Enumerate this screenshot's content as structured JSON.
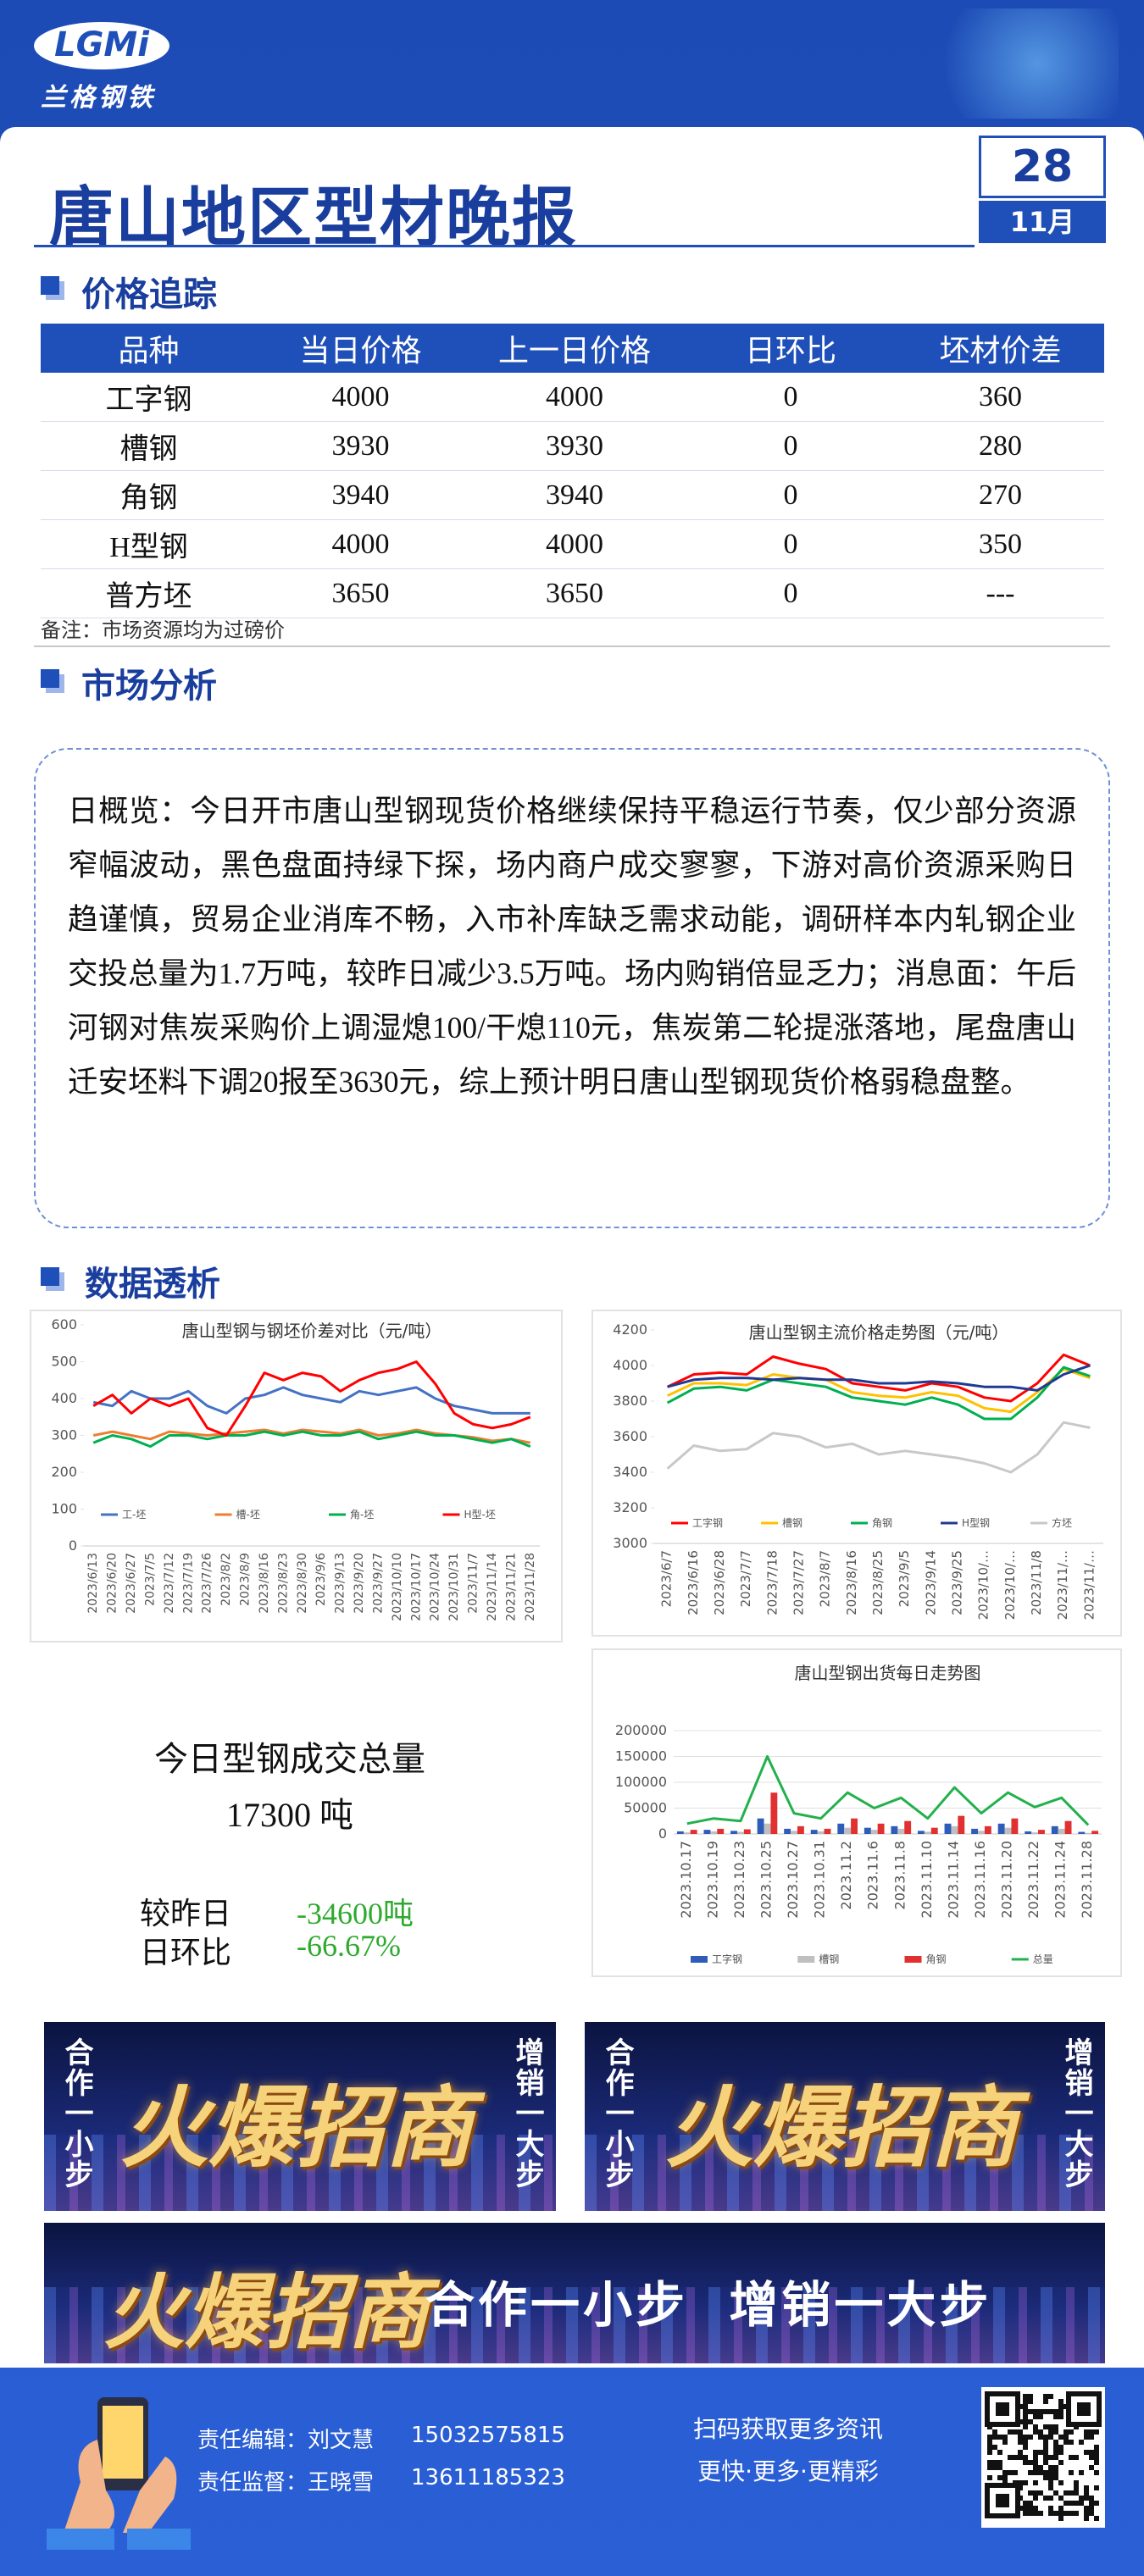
{
  "header": {
    "logo": "LGMi",
    "brand": "兰格钢铁",
    "title": "唐山地区型材晚报",
    "day": "28",
    "month": "11月"
  },
  "sections": {
    "price": "价格追踪",
    "market": "市场分析",
    "data": "数据透析"
  },
  "table": {
    "columns": [
      "品种",
      "当日价格",
      "上一日价格",
      "日环比",
      "坯材价差"
    ],
    "rows": [
      [
        "工字钢",
        4000,
        4000,
        0,
        360
      ],
      [
        "槽钢",
        3930,
        3930,
        0,
        280
      ],
      [
        "角钢",
        3940,
        3940,
        0,
        270
      ],
      [
        "H型钢",
        4000,
        4000,
        0,
        350
      ],
      [
        "普方坯",
        3650,
        3650,
        0,
        "---"
      ]
    ],
    "note": "备注：市场资源均为过磅价"
  },
  "analysis": "日概览：今日开市唐山型钢现货价格继续保持平稳运行节奏，仅少部分资源窄幅波动，黑色盘面持绿下探，场内商户成交寥寥，下游对高价资源采购日趋谨慎，贸易企业消库不畅，入市补库缺乏需求动能，调研样本内轧钢企业交投总量为1.7万吨，较昨日减少3.5万吨。场内购销倍显乏力；消息面：午后河钢对焦炭采购价上调湿熄100/干熄110元，焦炭第二轮提涨落地，尾盘唐山迁安坯料下调20报至3630元，综上预计明日唐山型钢现货价格弱稳盘整。",
  "summary": {
    "title": "今日型钢成交总量",
    "total": "17300 吨",
    "rows": [
      [
        "较昨日",
        "-34600吨"
      ],
      [
        "日环比",
        "-66.67%"
      ]
    ]
  },
  "banner": {
    "side_left": "合作一小步",
    "side_right": "增销一大步",
    "headline": "火爆招商",
    "slogan": "合作一小步  增销一大步"
  },
  "footer": {
    "editor": "责任编辑：刘文慧",
    "editor_phone": "15032575815",
    "supervisor": "责任监督：王晓雪",
    "supervisor_phone": "13611185323",
    "qr_title": "扫码获取更多资讯",
    "qr_slogan": "更快·更多·更精彩"
  },
  "chart_data": [
    {
      "type": "line",
      "title": "唐山型钢与钢坯价差对比（元/吨）",
      "categories": [
        "2023/6/13",
        "2023/6/20",
        "2023/6/27",
        "2023/7/5",
        "2023/7/12",
        "2023/7/19",
        "2023/7/26",
        "2023/8/2",
        "2023/8/9",
        "2023/8/16",
        "2023/8/23",
        "2023/8/30",
        "2023/9/6",
        "2023/9/13",
        "2023/9/20",
        "2023/9/27",
        "2023/10/10",
        "2023/10/17",
        "2023/10/24",
        "2023/10/31",
        "2023/11/7",
        "2023/11/14",
        "2023/11/21",
        "2023/11/28"
      ],
      "ylim": [
        0,
        600
      ],
      "yticks": [
        0,
        100,
        200,
        300,
        400,
        500,
        600
      ],
      "grid": false,
      "series": [
        {
          "name": "工-坯",
          "color": "#4472c4",
          "values": [
            390,
            380,
            420,
            400,
            400,
            420,
            380,
            360,
            400,
            410,
            430,
            410,
            400,
            390,
            420,
            410,
            420,
            430,
            400,
            380,
            370,
            360,
            360,
            360
          ]
        },
        {
          "name": "槽-坯",
          "color": "#ed7d31",
          "values": [
            300,
            310,
            300,
            290,
            310,
            305,
            300,
            305,
            310,
            315,
            305,
            315,
            310,
            305,
            315,
            300,
            305,
            315,
            305,
            300,
            295,
            285,
            290,
            280
          ]
        },
        {
          "name": "角-坯",
          "color": "#00b050",
          "values": [
            280,
            300,
            290,
            270,
            300,
            300,
            290,
            300,
            300,
            310,
            300,
            310,
            300,
            300,
            310,
            290,
            300,
            310,
            300,
            300,
            290,
            280,
            290,
            270
          ]
        },
        {
          "name": "H型-坯",
          "color": "#ff0000",
          "values": [
            380,
            410,
            360,
            400,
            380,
            400,
            320,
            300,
            380,
            470,
            450,
            470,
            460,
            420,
            450,
            470,
            480,
            500,
            440,
            360,
            330,
            320,
            330,
            350
          ]
        }
      ]
    },
    {
      "type": "line",
      "title": "唐山型钢主流价格走势图（元/吨）",
      "categories": [
        "2023/6/7",
        "2023/6/16",
        "2023/6/28",
        "2023/7/7",
        "2023/7/18",
        "2023/7/27",
        "2023/8/7",
        "2023/8/16",
        "2023/8/25",
        "2023/9/5",
        "2023/9/14",
        "2023/9/25",
        "2023/10/…",
        "2023/10/…",
        "2023/11/8",
        "2023/11/…",
        "2023/11/…"
      ],
      "ylim": [
        3000,
        4200
      ],
      "yticks": [
        3000,
        3200,
        3400,
        3600,
        3800,
        4000,
        4200
      ],
      "grid": false,
      "series": [
        {
          "name": "工字钢",
          "color": "#ff0000",
          "values": [
            3880,
            3950,
            3960,
            3950,
            4050,
            4010,
            3980,
            3900,
            3880,
            3860,
            3900,
            3880,
            3820,
            3800,
            3900,
            4060,
            4000
          ]
        },
        {
          "name": "槽钢",
          "color": "#ffc000",
          "values": [
            3830,
            3900,
            3900,
            3890,
            3950,
            3930,
            3920,
            3850,
            3830,
            3820,
            3850,
            3830,
            3760,
            3740,
            3850,
            3980,
            3930
          ]
        },
        {
          "name": "角钢",
          "color": "#00b050",
          "values": [
            3790,
            3870,
            3880,
            3860,
            3920,
            3900,
            3880,
            3820,
            3800,
            3780,
            3820,
            3780,
            3700,
            3700,
            3820,
            3990,
            3940
          ]
        },
        {
          "name": "H型钢",
          "color": "#1f3a93",
          "values": [
            3880,
            3920,
            3930,
            3930,
            3920,
            3930,
            3920,
            3920,
            3900,
            3900,
            3910,
            3900,
            3880,
            3880,
            3860,
            3950,
            4000
          ]
        },
        {
          "name": "方坯",
          "color": "#c8c8c8",
          "values": [
            3420,
            3550,
            3520,
            3530,
            3620,
            3600,
            3540,
            3560,
            3500,
            3520,
            3500,
            3480,
            3450,
            3400,
            3500,
            3680,
            3650
          ]
        }
      ]
    },
    {
      "type": "bar",
      "title": "唐山型钢出货每日走势图",
      "categories": [
        "2023.10.17",
        "2023.10.19",
        "2023.10.23",
        "2023.10.25",
        "2023.10.27",
        "2023.10.31",
        "2023.11.2",
        "2023.11.6",
        "2023.11.8",
        "2023.11.10",
        "2023.11.14",
        "2023.11.16",
        "2023.11.20",
        "2023.11.22",
        "2023.11.24",
        "2023.11.28"
      ],
      "ylim": [
        0,
        200000
      ],
      "yticks": [
        0,
        50000,
        100000,
        150000,
        200000
      ],
      "grid": true,
      "series": [
        {
          "name": "工字钢",
          "color": "#2e5cb8",
          "values": [
            5000,
            8000,
            6000,
            30000,
            10000,
            8000,
            20000,
            12000,
            15000,
            6000,
            20000,
            10000,
            20000,
            5000,
            15000,
            4000
          ]
        },
        {
          "name": "槽钢",
          "color": "#bfbfbf",
          "values": [
            3000,
            5000,
            4000,
            20000,
            6000,
            5000,
            12000,
            8000,
            10000,
            4000,
            15000,
            6000,
            12000,
            3000,
            10000,
            2000
          ]
        },
        {
          "name": "角钢",
          "color": "#e03030",
          "values": [
            8000,
            10000,
            9000,
            80000,
            15000,
            10000,
            30000,
            20000,
            25000,
            12000,
            35000,
            15000,
            30000,
            8000,
            25000,
            6000
          ]
        },
        {
          "name": "总量",
          "color": "#22b14c",
          "type": "line",
          "values": [
            20000,
            30000,
            25000,
            150000,
            40000,
            30000,
            80000,
            50000,
            70000,
            30000,
            90000,
            40000,
            80000,
            51900,
            70000,
            17300
          ]
        }
      ]
    }
  ]
}
